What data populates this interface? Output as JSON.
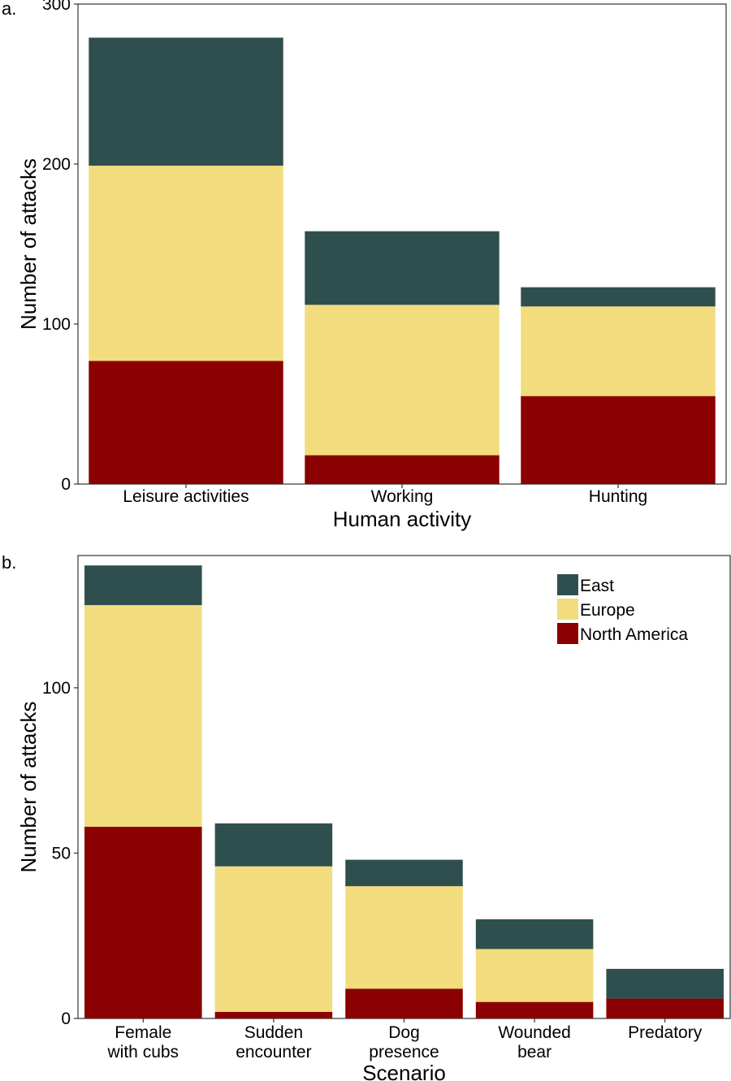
{
  "colors": {
    "east": "#2f4f4f",
    "europe": "#f2dc7e",
    "north_america": "#8b0000"
  },
  "legend": {
    "entries": [
      {
        "key": "east",
        "label": "East"
      },
      {
        "key": "europe",
        "label": "Europe"
      },
      {
        "key": "north_america",
        "label": "North America"
      }
    ]
  },
  "chart_data": [
    {
      "panel_label": "a.",
      "type": "bar",
      "stacked": true,
      "xlabel": "Human activity",
      "ylabel": "Number of attacks",
      "ylim": [
        0,
        300
      ],
      "yticks": [
        0,
        100,
        200,
        300
      ],
      "categories": [
        {
          "label": "Leisure activities"
        },
        {
          "label": "Working"
        },
        {
          "label": "Hunting"
        }
      ],
      "series": [
        {
          "name": "North America",
          "key": "north_america",
          "values": [
            77,
            18,
            55
          ]
        },
        {
          "name": "Europe",
          "key": "europe",
          "values": [
            122,
            94,
            56
          ]
        },
        {
          "name": "East",
          "key": "east",
          "values": [
            80,
            46,
            12
          ]
        }
      ],
      "grid": false,
      "legend": "none"
    },
    {
      "panel_label": "b.",
      "type": "bar",
      "stacked": true,
      "xlabel": "Scenario",
      "ylabel": "Number of attacks",
      "ylim": [
        0,
        140
      ],
      "yticks": [
        0,
        50,
        100
      ],
      "categories": [
        {
          "label": "Female\nwith cubs"
        },
        {
          "label": "Sudden\nencounter"
        },
        {
          "label": "Dog\npresence"
        },
        {
          "label": "Wounded\nbear"
        },
        {
          "label": "Predatory"
        }
      ],
      "series": [
        {
          "name": "North America",
          "key": "north_america",
          "values": [
            58,
            2,
            9,
            5,
            6
          ]
        },
        {
          "name": "Europe",
          "key": "europe",
          "values": [
            67,
            44,
            31,
            16,
            0
          ]
        },
        {
          "name": "East",
          "key": "east",
          "values": [
            12,
            13,
            8,
            9,
            9
          ]
        }
      ],
      "grid": false,
      "legend": "top-right"
    }
  ]
}
